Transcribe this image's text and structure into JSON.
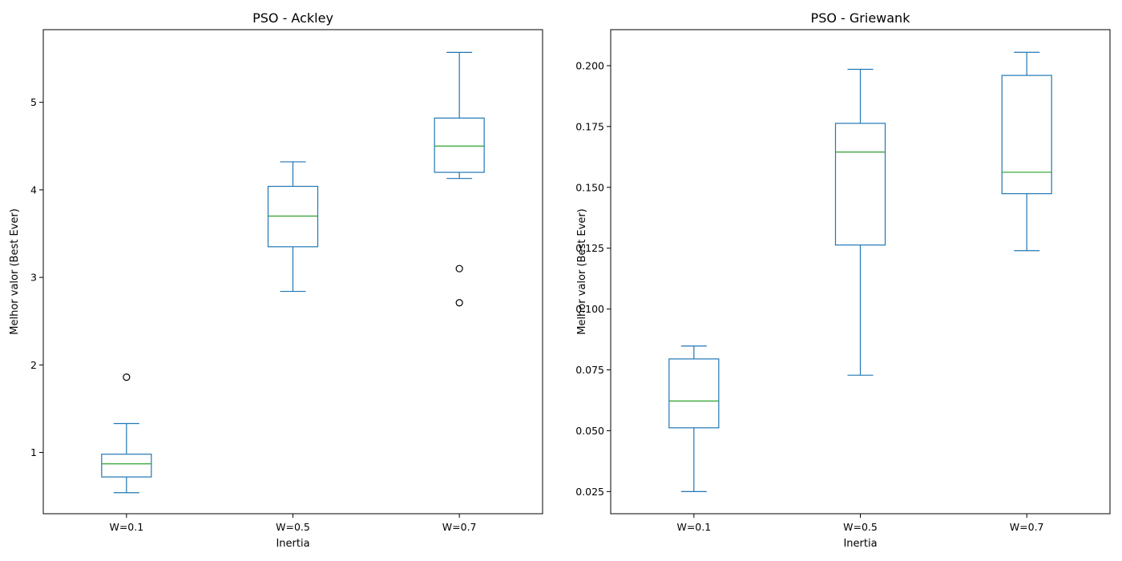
{
  "chart_data": [
    {
      "type": "box",
      "title": "PSO - Ackley",
      "xlabel": "Inertia",
      "ylabel": "Melhor valor (Best Ever)",
      "categories": [
        "W=0.1",
        "W=0.5",
        "W=0.7"
      ],
      "ylim": [
        0.3,
        5.83
      ],
      "yticks": [
        1,
        2,
        3,
        4,
        5
      ],
      "ytick_labels": [
        "1",
        "2",
        "3",
        "4",
        "5"
      ],
      "boxes": [
        {
          "whisker_low": 0.54,
          "q1": 0.72,
          "median": 0.87,
          "q3": 0.98,
          "whisker_high": 1.33,
          "outliers": [
            1.86
          ]
        },
        {
          "whisker_low": 2.84,
          "q1": 3.35,
          "median": 3.7,
          "q3": 4.04,
          "whisker_high": 4.32,
          "outliers": []
        },
        {
          "whisker_low": 4.13,
          "q1": 4.2,
          "median": 4.5,
          "q3": 4.82,
          "whisker_high": 5.57,
          "outliers": [
            3.1,
            2.71
          ]
        }
      ]
    },
    {
      "type": "box",
      "title": "PSO - Griewank",
      "xlabel": "Inertia",
      "ylabel": "Melhor valor (Best Ever)",
      "categories": [
        "W=0.1",
        "W=0.5",
        "W=0.7"
      ],
      "ylim": [
        0.0159,
        0.2148
      ],
      "yticks": [
        0.025,
        0.05,
        0.075,
        0.1,
        0.125,
        0.15,
        0.175,
        0.2
      ],
      "ytick_labels": [
        "0.025",
        "0.050",
        "0.075",
        "0.100",
        "0.125",
        "0.150",
        "0.175",
        "0.200"
      ],
      "boxes": [
        {
          "whisker_low": 0.025,
          "q1": 0.0512,
          "median": 0.0622,
          "q3": 0.0795,
          "whisker_high": 0.0848,
          "outliers": []
        },
        {
          "whisker_low": 0.0728,
          "q1": 0.1263,
          "median": 0.1645,
          "q3": 0.1763,
          "whisker_high": 0.1985,
          "outliers": []
        },
        {
          "whisker_low": 0.124,
          "q1": 0.1474,
          "median": 0.1562,
          "q3": 0.196,
          "whisker_high": 0.2055,
          "outliers": []
        }
      ]
    }
  ],
  "colors": {
    "box": "#1f77b4",
    "median": "#2ca02c",
    "outlier": "#000000",
    "axes": "#000000"
  }
}
